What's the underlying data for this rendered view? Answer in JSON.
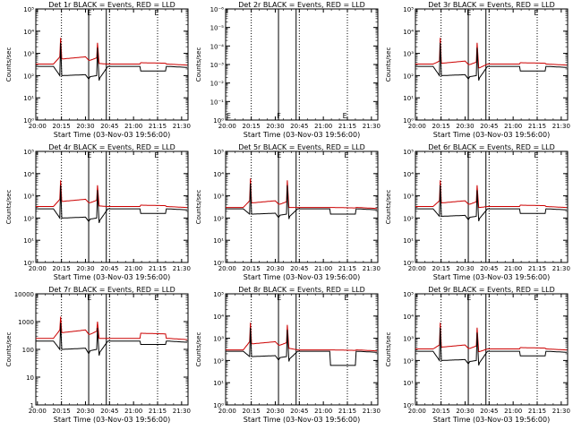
{
  "chart_data": [
    {
      "type": "line",
      "title": "Det 1r BLACK = Events, RED = LLD",
      "xlabel": "Start Time (03-Nov-03 19:56:00)",
      "ylabel": "Counts/sec",
      "y_ticks": [
        "10⁰",
        "10¹",
        "10²",
        "10³",
        "10⁴",
        "10⁵"
      ],
      "x_ticks": [
        "20:00",
        "20:15",
        "20:30",
        "20:45",
        "21:00",
        "21:15",
        "21:30"
      ],
      "ylim_exp": [
        0,
        5
      ],
      "events_base": 260,
      "lld_base": 330,
      "events_mid": 100,
      "lld_mid": 700,
      "gap_events": 160,
      "gap_lld": 380,
      "peak1": 5000,
      "peak2": 3000,
      "has_data": true
    },
    {
      "type": "line",
      "title": "Det 2r BLACK = Events, RED = LLD",
      "xlabel": "Start Time (03-Nov-03 19:56:00)",
      "ylabel": "Counts/sec",
      "y_ticks": [
        "10⁰",
        "10⁻¹",
        "10⁻²",
        "10⁻³",
        "10⁻⁴",
        "10⁻⁵",
        "10⁻⁶"
      ],
      "x_ticks": [
        "20:00",
        "20:15",
        "20:30",
        "20:45",
        "21:00",
        "21:15",
        "21:30"
      ],
      "ylim_exp": [
        0,
        -6
      ],
      "has_data": false
    },
    {
      "type": "line",
      "title": "Det 3r BLACK = Events, RED = LLD",
      "xlabel": "Start Time (03-Nov-03 19:56:00)",
      "ylabel": "Counts/sec",
      "y_ticks": [
        "10⁰",
        "10¹",
        "10²",
        "10³",
        "10⁴",
        "10⁵"
      ],
      "x_ticks": [
        "20:00",
        "20:15",
        "20:30",
        "20:45",
        "21:00",
        "21:15",
        "21:30"
      ],
      "ylim_exp": [
        0,
        5
      ],
      "events_base": 260,
      "lld_base": 330,
      "events_mid": 100,
      "lld_mid": 450,
      "gap_events": 160,
      "gap_lld": 380,
      "peak1": 5000,
      "peak2": 3000,
      "has_data": true
    },
    {
      "type": "line",
      "title": "Det 4r BLACK = Events, RED = LLD",
      "xlabel": "Start Time (03-Nov-03 19:56:00)",
      "ylabel": "Counts/sec",
      "y_ticks": [
        "10⁰",
        "10¹",
        "10²",
        "10³",
        "10⁴",
        "10⁵"
      ],
      "x_ticks": [
        "20:00",
        "20:15",
        "20:30",
        "20:45",
        "21:00",
        "21:15",
        "21:30"
      ],
      "ylim_exp": [
        0,
        5
      ],
      "events_base": 260,
      "lld_base": 330,
      "events_mid": 100,
      "lld_mid": 700,
      "gap_events": 160,
      "gap_lld": 380,
      "peak1": 5000,
      "peak2": 3000,
      "has_data": true
    },
    {
      "type": "line",
      "title": "Det 5r BLACK = Events, RED = LLD",
      "xlabel": "Start Time (03-Nov-03 19:56:00)",
      "ylabel": "Counts/sec",
      "y_ticks": [
        "10⁰",
        "10¹",
        "10²",
        "10³",
        "10⁴",
        "10⁵"
      ],
      "x_ticks": [
        "20:00",
        "20:15",
        "20:30",
        "20:45",
        "21:00",
        "21:15",
        "21:30"
      ],
      "ylim_exp": [
        0,
        5
      ],
      "events_base": 260,
      "lld_base": 300,
      "events_mid": 150,
      "lld_mid": 600,
      "gap_events": 150,
      "gap_lld": 300,
      "peak1": 6000,
      "peak2": 5000,
      "has_data": true
    },
    {
      "type": "line",
      "title": "Det 6r BLACK = Events, RED = LLD",
      "xlabel": "Start Time (03-Nov-03 19:56:00)",
      "ylabel": "Counts/sec",
      "y_ticks": [
        "10⁰",
        "10¹",
        "10²",
        "10³",
        "10⁴",
        "10⁵"
      ],
      "x_ticks": [
        "20:00",
        "20:15",
        "20:30",
        "20:45",
        "21:00",
        "21:15",
        "21:30"
      ],
      "ylim_exp": [
        0,
        5
      ],
      "events_base": 260,
      "lld_base": 330,
      "events_mid": 120,
      "lld_mid": 600,
      "gap_events": 160,
      "gap_lld": 380,
      "peak1": 5000,
      "peak2": 3000,
      "has_data": true
    },
    {
      "type": "line",
      "title": "Det 7r BLACK = Events, RED = LLD",
      "xlabel": "Start Time (03-Nov-03 19:56:00)",
      "ylabel": "Counts/sec",
      "y_ticks": [
        "1",
        "10",
        "100",
        "1000",
        "10000"
      ],
      "x_ticks": [
        "20:00",
        "20:15",
        "20:30",
        "20:45",
        "21:00",
        "21:15",
        "21:30"
      ],
      "ylim_exp": [
        0,
        4
      ],
      "events_base": 200,
      "lld_base": 250,
      "events_mid": 100,
      "lld_mid": 500,
      "gap_events": 150,
      "gap_lld": 380,
      "peak1": 1500,
      "peak2": 1000,
      "has_data": true
    },
    {
      "type": "line",
      "title": "Det 8r BLACK = Events, RED = LLD",
      "xlabel": "Start Time (03-Nov-03 19:56:00)",
      "ylabel": "Counts/sec",
      "y_ticks": [
        "10⁰",
        "10¹",
        "10²",
        "10³",
        "10⁴",
        "10⁵"
      ],
      "x_ticks": [
        "20:00",
        "20:15",
        "20:30",
        "20:45",
        "21:00",
        "21:15",
        "21:30"
      ],
      "ylim_exp": [
        0,
        5
      ],
      "events_base": 260,
      "lld_base": 300,
      "events_mid": 150,
      "lld_mid": 700,
      "gap_events": 60,
      "gap_lld": 300,
      "peak1": 5000,
      "peak2": 4000,
      "has_data": true
    },
    {
      "type": "line",
      "title": "Det 9r BLACK = Events, RED = LLD",
      "xlabel": "Start Time (03-Nov-03 19:56:00)",
      "ylabel": "Counts/sec",
      "y_ticks": [
        "10⁰",
        "10¹",
        "10²",
        "10³",
        "10⁴",
        "10⁵"
      ],
      "x_ticks": [
        "20:00",
        "20:15",
        "20:30",
        "20:45",
        "21:00",
        "21:15",
        "21:30"
      ],
      "ylim_exp": [
        0,
        5
      ],
      "events_base": 260,
      "lld_base": 330,
      "events_mid": 100,
      "lld_mid": 500,
      "gap_events": 160,
      "gap_lld": 380,
      "peak1": 5000,
      "peak2": 3000,
      "has_data": true
    }
  ],
  "marker_glyph": "E",
  "marker_glyph_2r": "F",
  "colors": {
    "events": "#000000",
    "lld": "#cc0000",
    "axis": "#000000",
    "bg": "#ffffff"
  },
  "x_range_minutes": [
    20.0,
    21.55
  ],
  "dotted_lines_time": [
    "20:15",
    "20:45",
    "21:15"
  ],
  "solid_lines_time": [
    "20:32",
    "20:43"
  ]
}
